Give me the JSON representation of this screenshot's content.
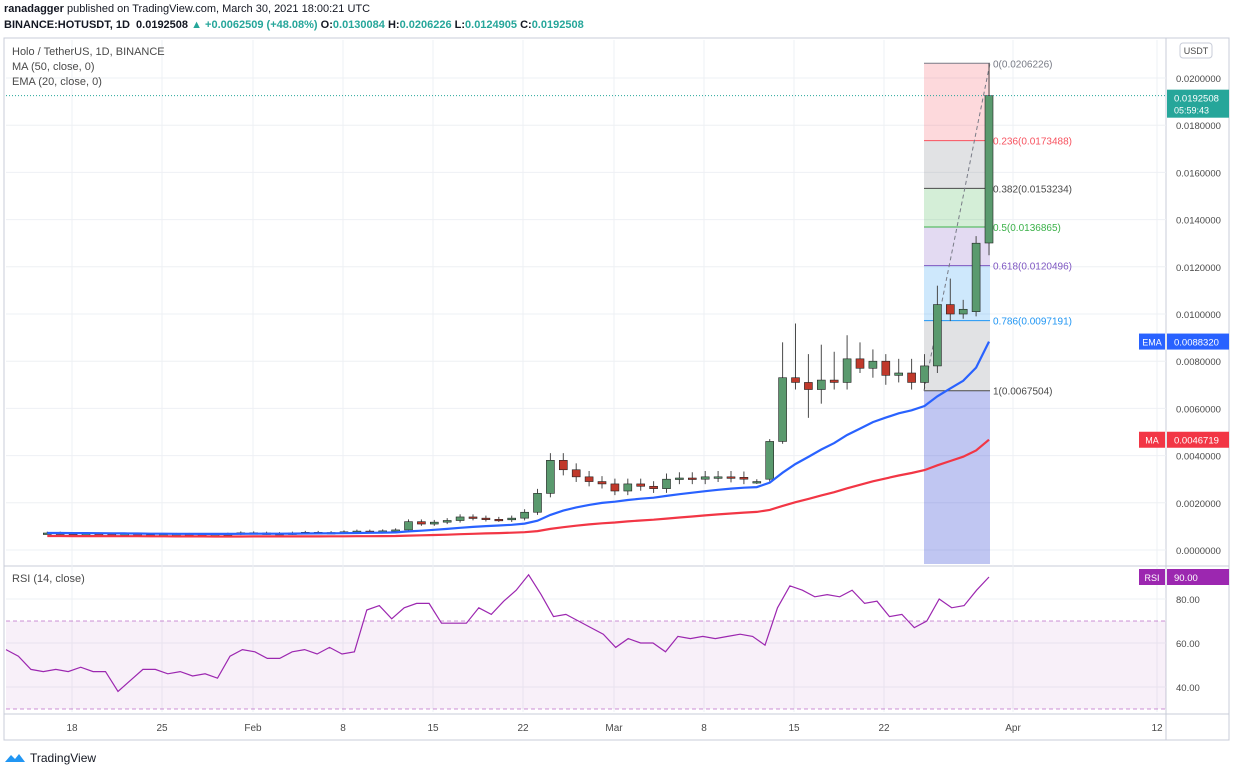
{
  "header": {
    "author": "ranadagger",
    "published_text": "published on TradingView.com, March 30, 2021 18:00:21 UTC",
    "symbol": "BINANCE:HOTUSDT, 1D",
    "price": "0.0192508",
    "change": "+0.0062509 (+48.08%)",
    "o_label": "O:",
    "o_val": "0.0130084",
    "h_label": "H:",
    "h_val": "0.0206226",
    "l_label": "L:",
    "l_val": "0.0124905",
    "c_label": "C:",
    "c_val": "0.0192508"
  },
  "legend": {
    "title": "Holo / TetherUS, 1D, BINANCE",
    "ma": "MA (50, close, 0)",
    "ema": "EMA (20, close, 0)",
    "rsi": "RSI (14, close)"
  },
  "currency_badge": "USDT",
  "price_axis": {
    "ticks": [
      "0.0200000",
      "0.0180000",
      "0.0160000",
      "0.0140000",
      "0.0120000",
      "0.0100000",
      "0.0080000",
      "0.0060000",
      "0.0040000",
      "0.0020000",
      "0.0000000"
    ]
  },
  "rsi_axis": {
    "ticks": [
      "80.00",
      "60.00",
      "40.00"
    ]
  },
  "x_axis": {
    "ticks": [
      "18",
      "25",
      "Feb",
      "8",
      "15",
      "22",
      "Mar",
      "8",
      "15",
      "22",
      "Apr",
      "12"
    ]
  },
  "badges": {
    "last_price": "0.0192508",
    "countdown": "05:59:43",
    "ema_label": "EMA",
    "ema_value": "0.0088320",
    "ma_label": "MA",
    "ma_value": "0.0046719",
    "rsi_label": "RSI",
    "rsi_value": "90.00"
  },
  "fib_levels": [
    {
      "ratio": "0",
      "label": "0(0.0206226)",
      "value": 0.0206226,
      "color": "#787b86"
    },
    {
      "ratio": "0.236",
      "label": "0.236(0.0173488)",
      "value": 0.0173488,
      "color": "#f7525f"
    },
    {
      "ratio": "0.382",
      "label": "0.382(0.0153234)",
      "value": 0.0153234,
      "color": "#4a4a4a"
    },
    {
      "ratio": "0.5",
      "label": "0.5(0.0136865)",
      "value": 0.0136865,
      "color": "#3bb149"
    },
    {
      "ratio": "0.618",
      "label": "0.618(0.0120496)",
      "value": 0.0120496,
      "color": "#7e57c2"
    },
    {
      "ratio": "0.786",
      "label": "0.786(0.0097191)",
      "value": 0.0097191,
      "color": "#2196f3"
    },
    {
      "ratio": "1",
      "label": "1(0.0067504)",
      "value": 0.0067504,
      "color": "#4a4a4a"
    }
  ],
  "footer": {
    "brand": "TradingView"
  },
  "chart_data": {
    "type": "line",
    "title": "Holo / TetherUS, 1D, BINANCE",
    "ylim": [
      0,
      0.021
    ],
    "candles_recent": [
      {
        "o": 0.0029,
        "h": 0.003,
        "l": 0.0028,
        "c": 0.0029
      },
      {
        "o": 0.003,
        "h": 0.0047,
        "l": 0.0029,
        "c": 0.0046
      },
      {
        "o": 0.0046,
        "h": 0.0088,
        "l": 0.0045,
        "c": 0.0073
      },
      {
        "o": 0.0073,
        "h": 0.0096,
        "l": 0.0068,
        "c": 0.0071
      },
      {
        "o": 0.0071,
        "h": 0.0083,
        "l": 0.0056,
        "c": 0.0068
      },
      {
        "o": 0.0068,
        "h": 0.0087,
        "l": 0.0062,
        "c": 0.0072
      },
      {
        "o": 0.0072,
        "h": 0.0084,
        "l": 0.0068,
        "c": 0.0071
      },
      {
        "o": 0.0071,
        "h": 0.0091,
        "l": 0.0068,
        "c": 0.0081
      },
      {
        "o": 0.0081,
        "h": 0.0088,
        "l": 0.0075,
        "c": 0.0077
      },
      {
        "o": 0.0077,
        "h": 0.0085,
        "l": 0.0073,
        "c": 0.008
      },
      {
        "o": 0.008,
        "h": 0.0083,
        "l": 0.007,
        "c": 0.0074
      },
      {
        "o": 0.0074,
        "h": 0.0081,
        "l": 0.0071,
        "c": 0.0075
      },
      {
        "o": 0.0075,
        "h": 0.0081,
        "l": 0.0068,
        "c": 0.0071
      },
      {
        "o": 0.0071,
        "h": 0.0083,
        "l": 0.0068,
        "c": 0.0078
      },
      {
        "o": 0.0078,
        "h": 0.0112,
        "l": 0.0075,
        "c": 0.0104
      },
      {
        "o": 0.0104,
        "h": 0.0115,
        "l": 0.0097,
        "c": 0.01
      },
      {
        "o": 0.01,
        "h": 0.0106,
        "l": 0.0098,
        "c": 0.0102
      },
      {
        "o": 0.0101,
        "h": 0.0133,
        "l": 0.0099,
        "c": 0.013
      },
      {
        "o": 0.0130084,
        "h": 0.0206226,
        "l": 0.0124905,
        "c": 0.0192508
      }
    ],
    "series": [
      {
        "name": "EMA (20, close, 0)",
        "color": "#2962ff",
        "last": 0.008832
      },
      {
        "name": "MA (50, close, 0)",
        "color": "#f23645",
        "last": 0.0046719
      },
      {
        "name": "RSI (14, close)",
        "color": "#9c27b0",
        "last": 90.0
      }
    ],
    "rsi_band": [
      30,
      70
    ]
  }
}
